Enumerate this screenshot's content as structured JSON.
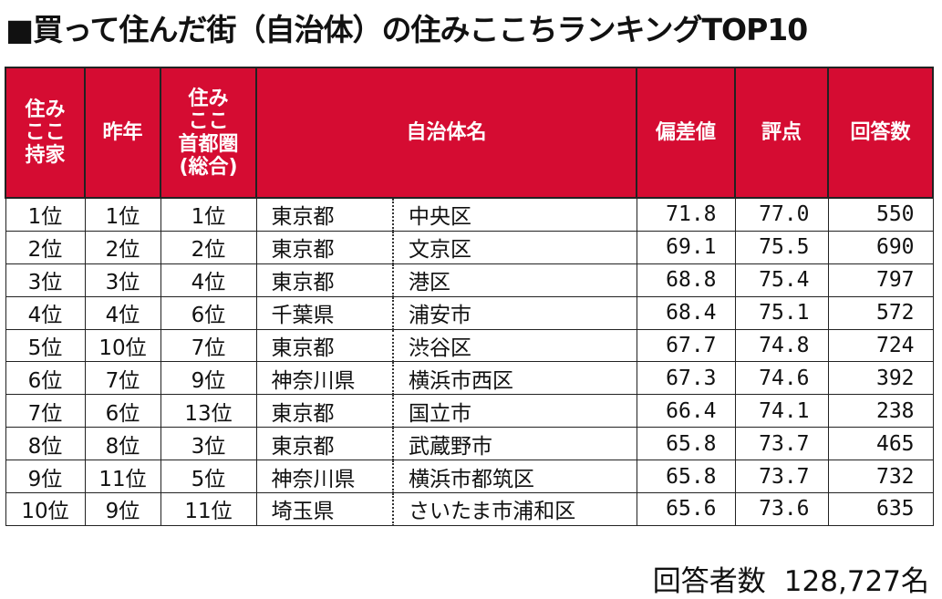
{
  "title": "■買って住んだ街（自治体）の住みここちランキングTOP10",
  "table": {
    "header": [
      "住み\nここ\n持家",
      "昨年",
      "住み\nここ\n首都圏\n(総合)",
      "自治体名",
      "偏差値",
      "評点",
      "回答数"
    ],
    "rows": [
      [
        "1位",
        "1位",
        "1位",
        "東京都",
        "中央区",
        "71.8",
        "77.0",
        "550"
      ],
      [
        "2位",
        "2位",
        "2位",
        "東京都",
        "文京区",
        "69.1",
        "75.5",
        "690"
      ],
      [
        "3位",
        "3位",
        "4位",
        "東京都",
        "港区",
        "68.8",
        "75.4",
        "797"
      ],
      [
        "4位",
        "4位",
        "6位",
        "千葉県",
        "浦安市",
        "68.4",
        "75.1",
        "572"
      ],
      [
        "5位",
        "10位",
        "7位",
        "東京都",
        "渋谷区",
        "67.7",
        "74.8",
        "724"
      ],
      [
        "6位",
        "7位",
        "9位",
        "神奈川県",
        "横浜市西区",
        "67.3",
        "74.6",
        "392"
      ],
      [
        "7位",
        "6位",
        "13位",
        "東京都",
        "国立市",
        "66.4",
        "74.1",
        "238"
      ],
      [
        "8位",
        "8位",
        "3位",
        "東京都",
        "武蔵野市",
        "65.8",
        "73.7",
        "465"
      ],
      [
        "9位",
        "11位",
        "5位",
        "神奈川県",
        "横浜市都筑区",
        "65.8",
        "73.7",
        "732"
      ],
      [
        "10位",
        "9位",
        "11位",
        "埼玉県",
        "さいたま市浦和区",
        "65.6",
        "73.6",
        "635"
      ]
    ]
  },
  "footer": {
    "label": "回答者数",
    "value": "128,727名"
  }
}
